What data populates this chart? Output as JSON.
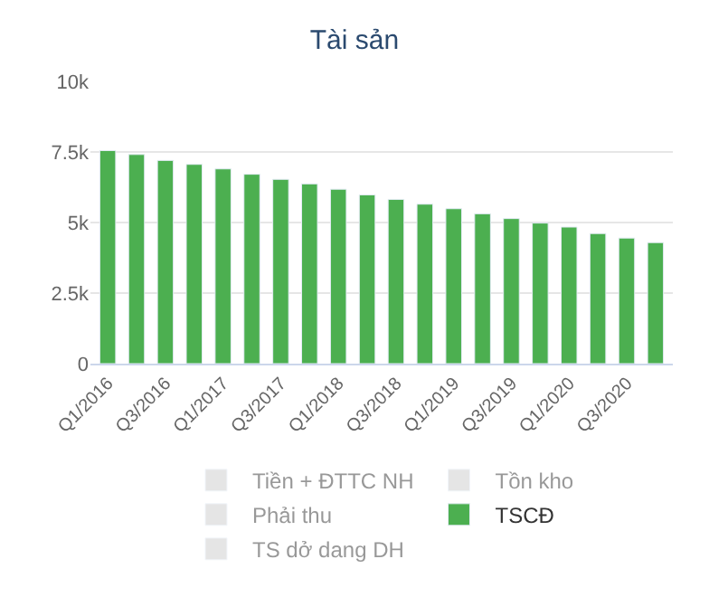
{
  "chart_data": {
    "type": "bar",
    "title": "Tài sản",
    "categories": [
      "Q1/2016",
      null,
      "Q3/2016",
      null,
      "Q1/2017",
      null,
      "Q3/2017",
      null,
      "Q1/2018",
      null,
      "Q3/2018",
      null,
      "Q1/2019",
      null,
      "Q3/2019",
      null,
      "Q1/2020",
      null,
      "Q3/2020",
      null
    ],
    "series": [
      {
        "name": "Tiền + ĐTTC NH",
        "color": "#cccccc",
        "values": [
          null,
          null,
          null,
          null,
          null,
          null,
          null,
          null,
          null,
          null,
          null,
          null,
          null,
          null,
          null,
          null,
          null,
          null,
          null,
          null
        ]
      },
      {
        "name": "Tồn kho",
        "color": "#cccccc",
        "values": [
          null,
          null,
          null,
          null,
          null,
          null,
          null,
          null,
          null,
          null,
          null,
          null,
          null,
          null,
          null,
          null,
          null,
          null,
          null,
          null
        ]
      },
      {
        "name": "Phải thu",
        "color": "#cccccc",
        "values": [
          null,
          null,
          null,
          null,
          null,
          null,
          null,
          null,
          null,
          null,
          null,
          null,
          null,
          null,
          null,
          null,
          null,
          null,
          null,
          null
        ]
      },
      {
        "name": "TSCĐ",
        "color": "#4caf50",
        "values": [
          7550,
          7410,
          7200,
          7060,
          6900,
          6710,
          6530,
          6370,
          6180,
          5980,
          5820,
          5650,
          5490,
          5310,
          5140,
          4980,
          4840,
          4610,
          4450,
          4290
        ]
      },
      {
        "name": "TS dở dang DH",
        "color": "#cccccc",
        "values": [
          null,
          null,
          null,
          null,
          null,
          null,
          null,
          null,
          null,
          null,
          null,
          null,
          null,
          null,
          null,
          null,
          null,
          null,
          null,
          null
        ]
      }
    ],
    "ylim": [
      0,
      10000
    ],
    "yticks": [
      {
        "value": 0,
        "label": "0"
      },
      {
        "value": 2500,
        "label": "2.5k"
      },
      {
        "value": 5000,
        "label": "5k"
      },
      {
        "value": 7500,
        "label": "7.5k"
      },
      {
        "value": 10000,
        "label": "10k"
      }
    ],
    "grid": "y",
    "legend": "bottom"
  }
}
